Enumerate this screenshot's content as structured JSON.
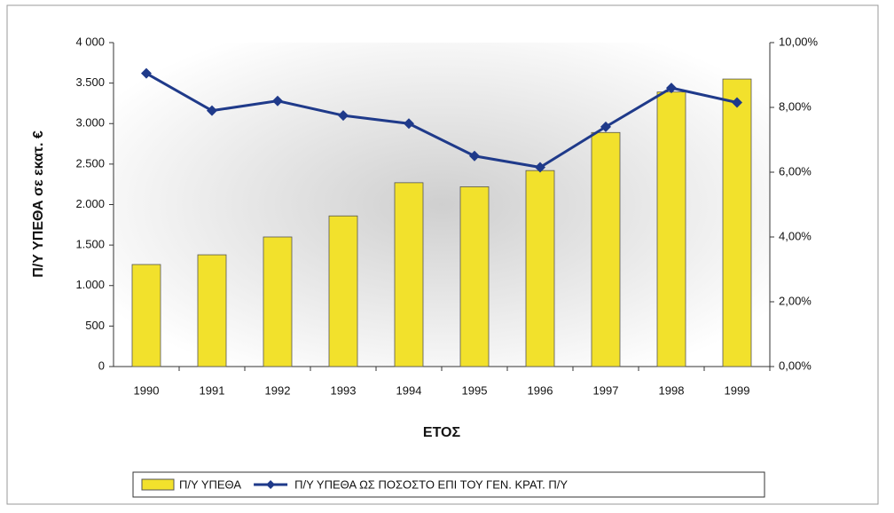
{
  "chart_data": {
    "type": "bar",
    "ylabel": "Π/Υ ΥΠΕΘΑ σε εκατ. €",
    "xlabel": "ΕΤΟΣ",
    "categories": [
      "1990",
      "1991",
      "1992",
      "1993",
      "1994",
      "1995",
      "1996",
      "1997",
      "1998",
      "1999"
    ],
    "series": [
      {
        "name": "Π/Υ ΥΠΕΘΑ",
        "type": "bar",
        "axis": "y",
        "color": "#f2e12c",
        "values": [
          1260,
          1380,
          1600,
          1860,
          2270,
          2220,
          2420,
          2890,
          3390,
          3550
        ]
      },
      {
        "name": "Π/Υ ΥΠΕΘΑ ΩΣ ΠΟΣΟΣΤΟ ΕΠΙ ΤΟΥ ΓΕΝ. ΚΡΑΤ. Π/Υ",
        "type": "line",
        "axis": "y2",
        "color": "#1f3a8a",
        "values": [
          9.05,
          7.9,
          8.2,
          7.75,
          7.5,
          6.5,
          6.15,
          7.4,
          8.6,
          8.15
        ]
      }
    ],
    "ylim": [
      0,
      4000
    ],
    "yticks": [
      0,
      500,
      {
        "value": 1000,
        "label": "1.000"
      },
      {
        "value": 1500,
        "label": "1.500"
      },
      {
        "value": 2000,
        "label": "2.000"
      },
      {
        "value": 2500,
        "label": "2.500"
      },
      {
        "value": 3000,
        "label": "3.000"
      },
      {
        "value": 3500,
        "label": "3.500"
      },
      {
        "value": 4000,
        "label": "4 000"
      }
    ],
    "y2lim": [
      0,
      10
    ],
    "y2ticks": [
      {
        "value": 0,
        "label": "0,00%"
      },
      {
        "value": 2,
        "label": "2,00%"
      },
      {
        "value": 4,
        "label": "4,00%"
      },
      {
        "value": 6,
        "label": "6,00%"
      },
      {
        "value": 8,
        "label": "8,00%"
      },
      {
        "value": 10,
        "label": "10,00%"
      }
    ],
    "legend": "bottom"
  }
}
